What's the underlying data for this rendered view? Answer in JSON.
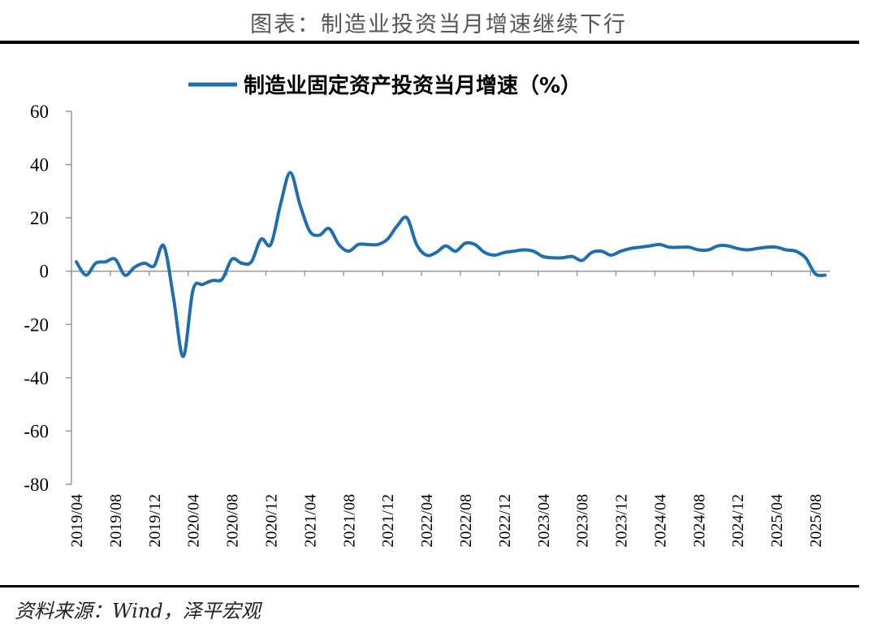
{
  "figure": {
    "title": "图表：制造业投资当月增速继续下行",
    "source": "资料来源：Wind，泽平宏观"
  },
  "chart_data": {
    "type": "line",
    "title": "",
    "xlabel": "",
    "ylabel": "",
    "ylim": [
      -80,
      60
    ],
    "yticks": [
      60,
      40,
      20,
      0,
      -20,
      -40,
      -60,
      -80
    ],
    "xticks": [
      "2019/04",
      "2019/08",
      "2019/12",
      "2020/04",
      "2020/08",
      "2020/12",
      "2021/04",
      "2021/08",
      "2021/12",
      "2022/04",
      "2022/08",
      "2022/12",
      "2023/04",
      "2023/08",
      "2023/12",
      "2024/04",
      "2024/08",
      "2024/12",
      "2025/04",
      "2025/08"
    ],
    "grid": false,
    "legend": "top-center",
    "color": "#1f6fae",
    "series": [
      {
        "name": "制造业固定资产投资当月增速（%）",
        "x": [
          "2019/04",
          "2019/05",
          "2019/06",
          "2019/07",
          "2019/08",
          "2019/09",
          "2019/10",
          "2019/11",
          "2019/12",
          "2020/01",
          "2020/02",
          "2020/03",
          "2020/04",
          "2020/05",
          "2020/06",
          "2020/07",
          "2020/08",
          "2020/09",
          "2020/10",
          "2020/11",
          "2020/12",
          "2021/01",
          "2021/02",
          "2021/03",
          "2021/04",
          "2021/05",
          "2021/06",
          "2021/07",
          "2021/08",
          "2021/09",
          "2021/10",
          "2021/11",
          "2021/12",
          "2022/01",
          "2022/02",
          "2022/03",
          "2022/04",
          "2022/05",
          "2022/06",
          "2022/07",
          "2022/08",
          "2022/09",
          "2022/10",
          "2022/11",
          "2022/12",
          "2023/01",
          "2023/02",
          "2023/03",
          "2023/04",
          "2023/05",
          "2023/06",
          "2023/07",
          "2023/08",
          "2023/09",
          "2023/10",
          "2023/11",
          "2023/12",
          "2024/01",
          "2024/02",
          "2024/03",
          "2024/04",
          "2024/05",
          "2024/06",
          "2024/07",
          "2024/08",
          "2024/09",
          "2024/10",
          "2024/11",
          "2024/12",
          "2025/01",
          "2025/02",
          "2025/03",
          "2025/04",
          "2025/05",
          "2025/06",
          "2025/07",
          "2025/08",
          "2025/09"
        ],
        "values": [
          3.5,
          -1.5,
          3.0,
          3.5,
          4.5,
          -1.5,
          1.5,
          3.0,
          2.0,
          9.5,
          -10.0,
          -32.0,
          -7.0,
          -5.0,
          -3.5,
          -3.0,
          4.5,
          3.0,
          3.5,
          12.0,
          10.0,
          25.0,
          37.0,
          25.0,
          15.0,
          13.5,
          16.0,
          10.0,
          7.5,
          10.0,
          10.0,
          10.0,
          12.0,
          17.0,
          20.0,
          10.0,
          6.0,
          7.0,
          9.5,
          7.5,
          10.5,
          10.0,
          7.0,
          6.0,
          7.0,
          7.5,
          8.0,
          7.5,
          5.5,
          5.0,
          5.0,
          5.5,
          4.0,
          7.0,
          7.5,
          6.0,
          7.5,
          8.5,
          9.0,
          9.5,
          10.0,
          9.0,
          9.0,
          9.0,
          8.0,
          8.0,
          9.5,
          9.5,
          8.5,
          8.0,
          8.5,
          9.0,
          9.0,
          8.0,
          7.5,
          5.0,
          -1.0,
          -1.5
        ]
      }
    ]
  }
}
